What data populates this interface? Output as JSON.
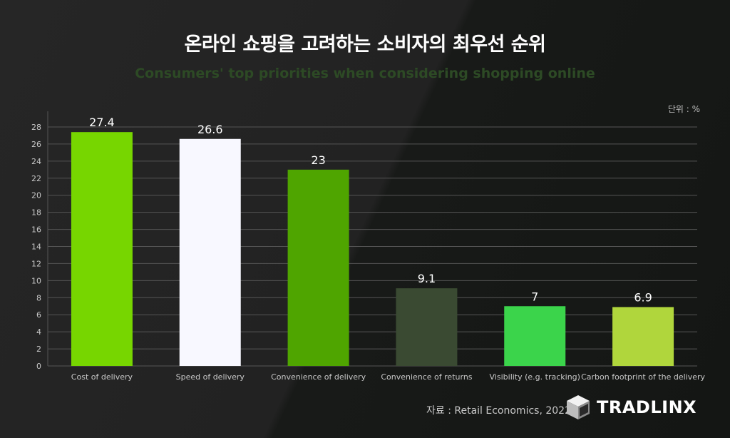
{
  "title": "온라인 쇼핑을 고려하는 소비자의 최우선 순위",
  "subtitle": "Consumers' top priorities when considering shopping online",
  "unit_label": "단위 : %",
  "source": "자료 : Retail Economics, 2022",
  "brand": {
    "name": "TRADLINX"
  },
  "colors": {
    "grid": "#555555",
    "axis_text": "#c8c8c8",
    "value_text": "#ffffff"
  },
  "chart_data": {
    "type": "bar",
    "categories": [
      "Cost of delivery",
      "Speed of delivery",
      "Convenience of delivery",
      "Convenience of returns",
      "Visibility (e.g. tracking)",
      "Carbon footprint of the delivery"
    ],
    "values": [
      27.4,
      26.6,
      23,
      9.1,
      7,
      6.9
    ],
    "value_labels": [
      "27.4",
      "26.6",
      "23",
      "9.1",
      "7",
      "6.9"
    ],
    "bar_colors": [
      "#77d600",
      "#f8f8ff",
      "#4fa500",
      "#3a4a32",
      "#3bd44b",
      "#b0d63c"
    ],
    "ylim": [
      0,
      28
    ],
    "yticks": [
      0,
      2,
      4,
      6,
      8,
      10,
      12,
      14,
      16,
      18,
      20,
      22,
      24,
      26,
      28
    ],
    "grid": true,
    "xlabel": "",
    "ylabel": ""
  }
}
